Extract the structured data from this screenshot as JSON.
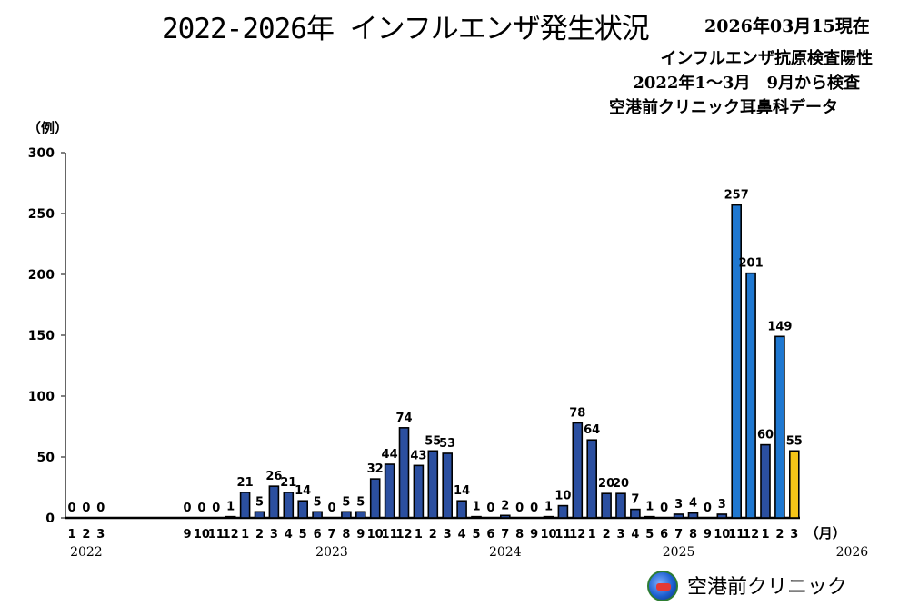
{
  "header": {
    "title": "2022-2026年 インフルエンザ発生状況",
    "as_of": "2026年03月15現在",
    "subtitle_1": "インフルエンザ抗原検査陽性",
    "subtitle_2": "2022年1～3月　9月から検査",
    "subtitle_3": "空港前クリニック耳鼻科データ"
  },
  "footer": {
    "clinic_name": "空港前クリニック",
    "logo_icon": "clinic-globe-logo"
  },
  "colors": {
    "bar_default": "#2b4fa0",
    "bar_highlight": "#1f78d1",
    "bar_current": "#f5c518",
    "bar_border": "#000000"
  },
  "chart_data": {
    "type": "bar",
    "y_unit_label": "（例）",
    "x_unit_label": "（月）",
    "ylim": [
      0,
      300
    ],
    "yticks": [
      0,
      50,
      100,
      150,
      200,
      250,
      300
    ],
    "grid": false,
    "legend": "none",
    "year_labels": [
      {
        "label": "2022",
        "at_index": 1
      },
      {
        "label": "2023",
        "at_index": 13
      },
      {
        "label": "2024",
        "at_index": 25
      },
      {
        "label": "2025",
        "at_index": 37
      },
      {
        "label": "2026",
        "at_index": 49
      }
    ],
    "categories": [
      "1",
      "2",
      "3",
      "9",
      "10",
      "11",
      "12",
      "1",
      "2",
      "3",
      "4",
      "5",
      "6",
      "7",
      "8",
      "9",
      "10",
      "11",
      "12",
      "1",
      "2",
      "3",
      "4",
      "5",
      "6",
      "7",
      "8",
      "9",
      "10",
      "11",
      "12",
      "1",
      "2",
      "3",
      "4",
      "5",
      "6",
      "7",
      "8",
      "9",
      "10",
      "11",
      "12",
      "1",
      "2",
      "3"
    ],
    "years": [
      "2022",
      "2022",
      "2022",
      "2022",
      "2022",
      "2022",
      "2022",
      "2023",
      "2023",
      "2023",
      "2023",
      "2023",
      "2023",
      "2023",
      "2023",
      "2023",
      "2023",
      "2023",
      "2023",
      "2024",
      "2024",
      "2024",
      "2024",
      "2024",
      "2024",
      "2024",
      "2024",
      "2024",
      "2024",
      "2024",
      "2024",
      "2025",
      "2025",
      "2025",
      "2025",
      "2025",
      "2025",
      "2025",
      "2025",
      "2025",
      "2025",
      "2025",
      "2025",
      "2026",
      "2026",
      "2026"
    ],
    "values": [
      0,
      0,
      0,
      0,
      0,
      0,
      1,
      21,
      5,
      26,
      21,
      14,
      5,
      0,
      5,
      5,
      32,
      44,
      74,
      43,
      55,
      53,
      14,
      1,
      0,
      2,
      0,
      0,
      1,
      10,
      78,
      64,
      20,
      20,
      7,
      1,
      0,
      3,
      4,
      0,
      3,
      257,
      201,
      60,
      149,
      55
    ],
    "labels": [
      "0",
      "0",
      "0",
      "0",
      "0",
      "0",
      "1",
      "21",
      "5",
      "26",
      "21",
      "14",
      "5",
      "0",
      "5",
      "5",
      "32",
      "44",
      "74",
      "43",
      "55",
      "53",
      "14",
      "1",
      "0",
      "2",
      "0",
      "0",
      "1",
      "10",
      "78",
      "64",
      "20",
      "20",
      "7",
      "1",
      "0",
      "3",
      "4",
      "0",
      "3",
      "257",
      "201",
      "60",
      "149",
      "55"
    ],
    "bar_style": [
      "d",
      "d",
      "d",
      "d",
      "d",
      "d",
      "d",
      "d",
      "d",
      "d",
      "d",
      "d",
      "d",
      "d",
      "d",
      "d",
      "d",
      "d",
      "d",
      "d",
      "d",
      "d",
      "d",
      "d",
      "d",
      "d",
      "d",
      "d",
      "d",
      "d",
      "d",
      "d",
      "d",
      "d",
      "d",
      "d",
      "d",
      "d",
      "d",
      "d",
      "d",
      "h",
      "h",
      "d",
      "h",
      "c"
    ]
  }
}
